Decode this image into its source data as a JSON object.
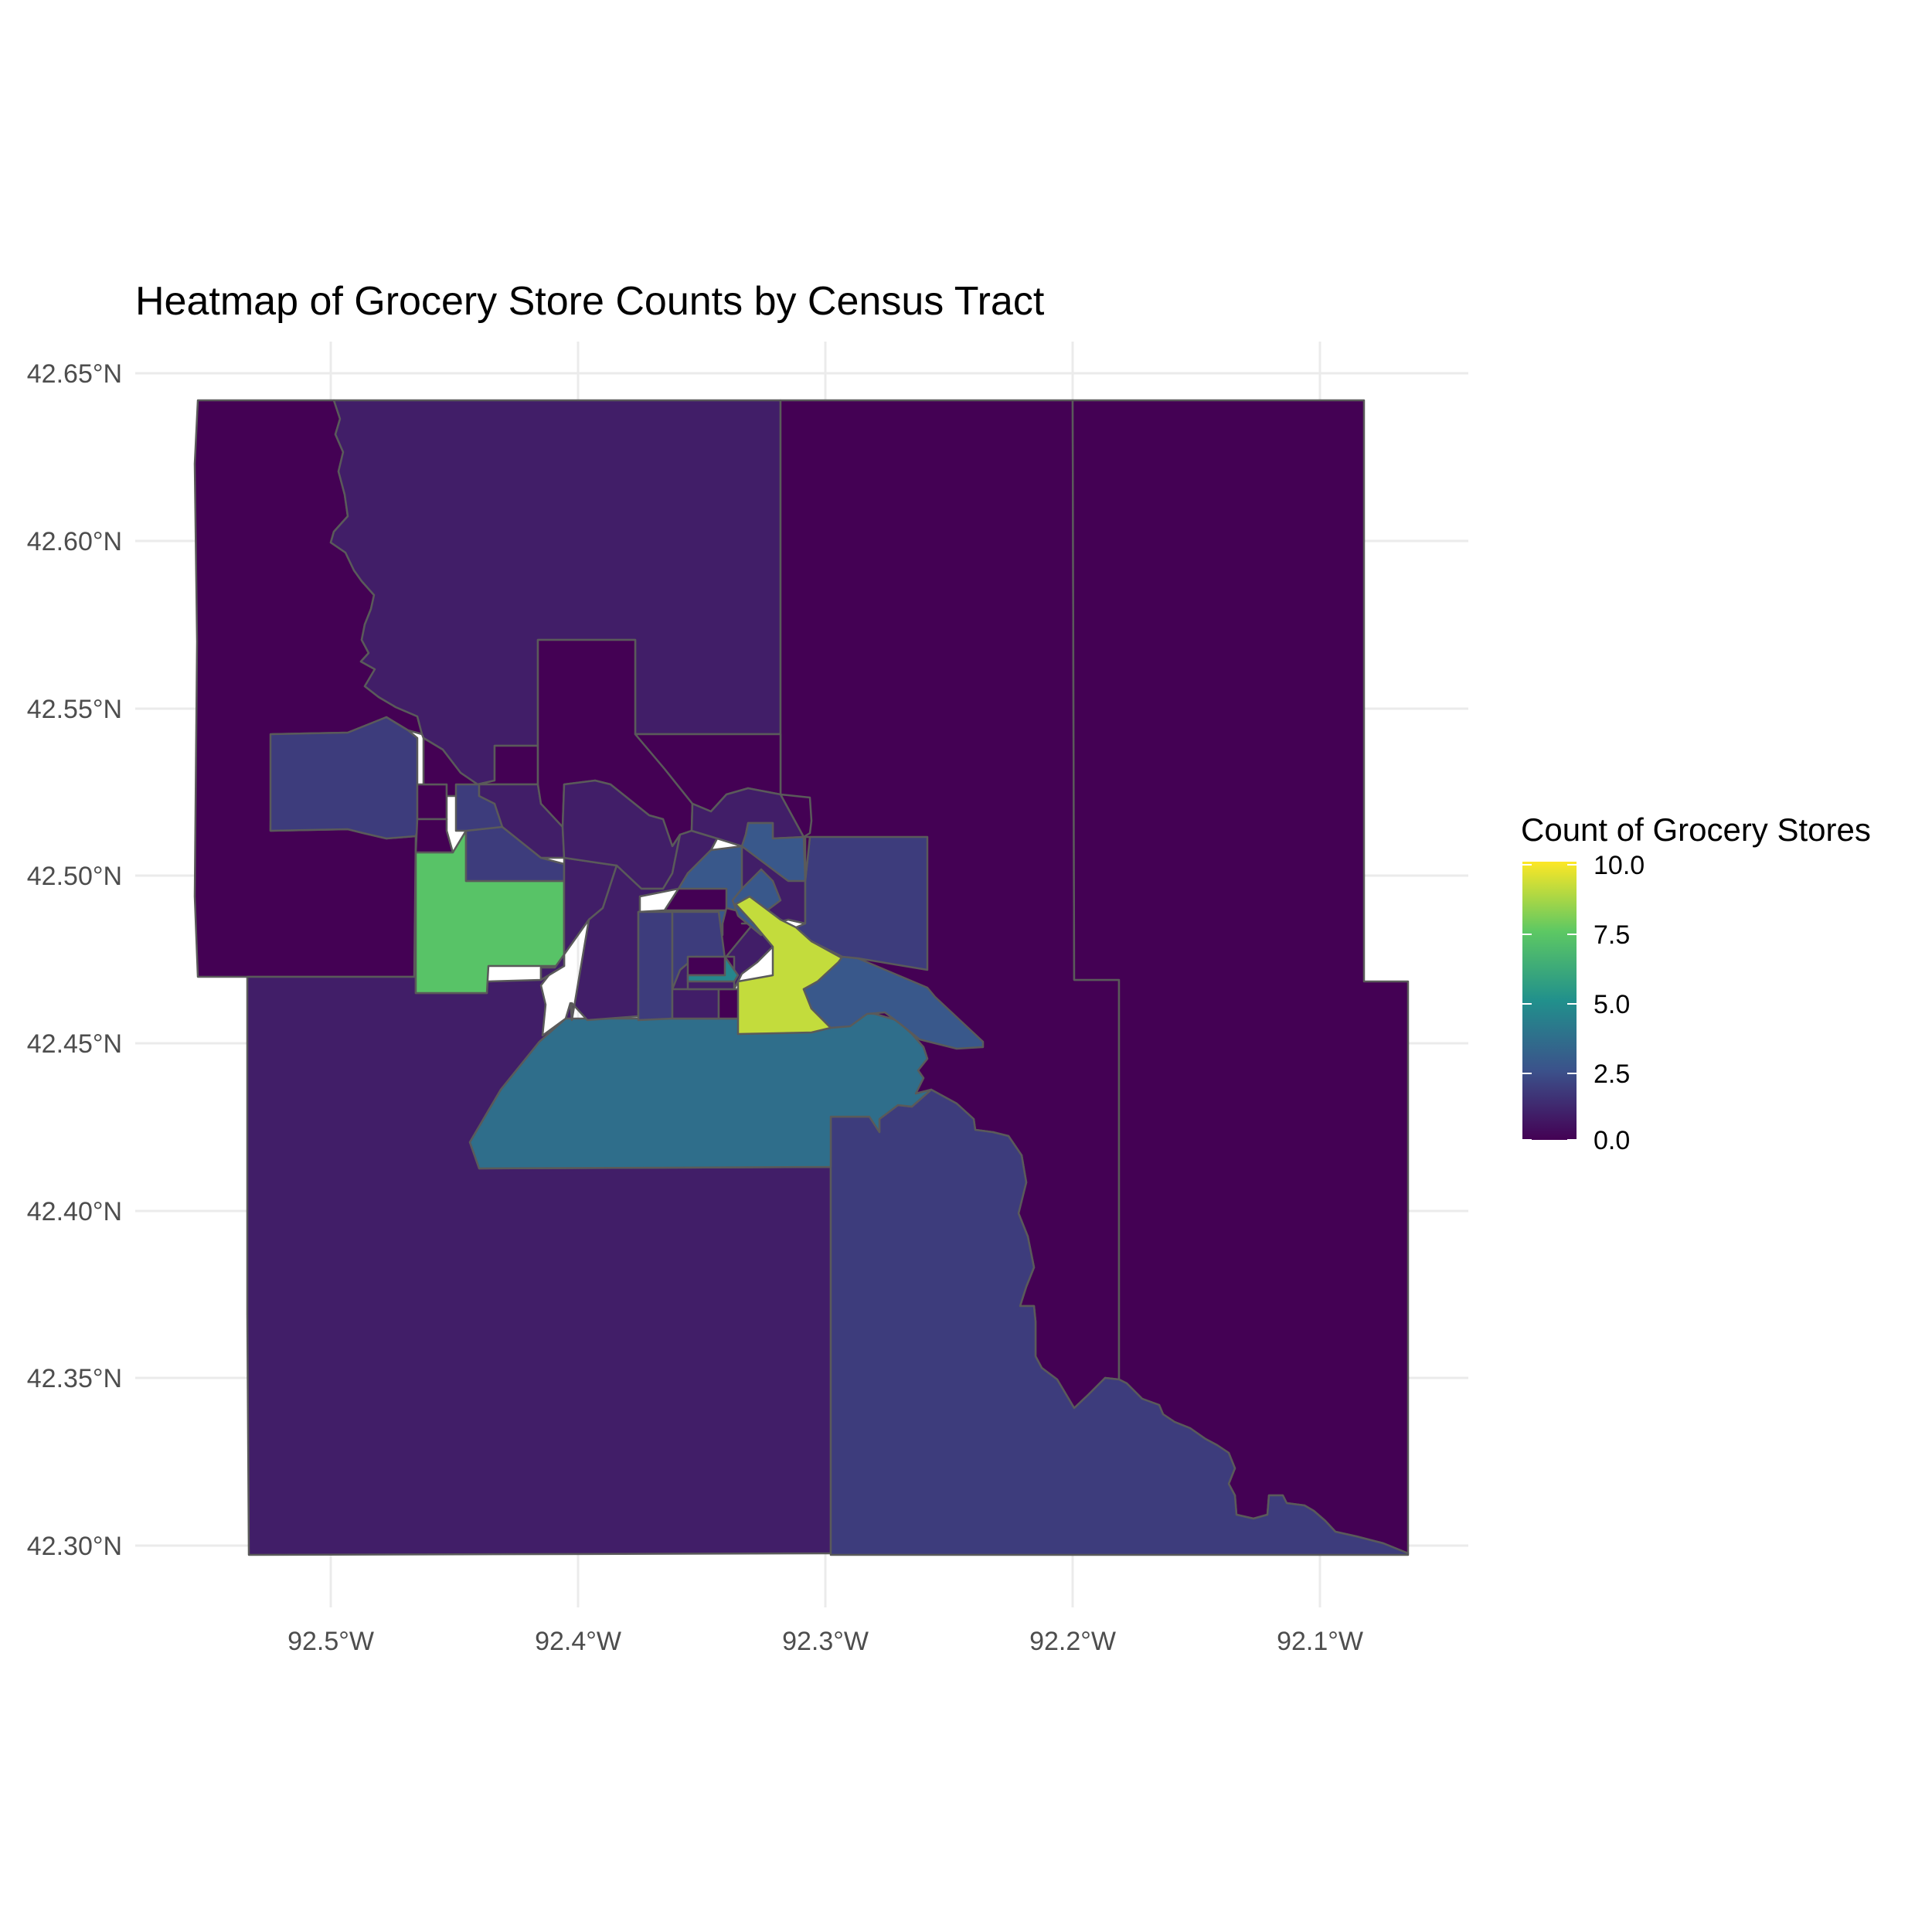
{
  "chart_data": {
    "type": "heatmap",
    "title": "Heatmap of Grocery Store Counts by Census Tract",
    "xlabel": "",
    "ylabel": "",
    "x_ticks": [
      "92.5°W",
      "92.4°W",
      "92.3°W",
      "92.2°W",
      "92.1°W"
    ],
    "y_ticks": [
      "42.65°N",
      "42.60°N",
      "42.55°N",
      "42.50°N",
      "42.45°N",
      "42.40°N",
      "42.35°N",
      "42.30°N"
    ],
    "grid": true,
    "legend": {
      "title": "Count of Grocery Stores",
      "placement": "right",
      "labels": [
        "10.0",
        "7.5",
        "5.0",
        "2.5",
        "0.0"
      ],
      "range": [
        0,
        10
      ],
      "palette": "viridis"
    },
    "tracts": [
      {
        "id": "t01",
        "value": 0
      },
      {
        "id": "t02",
        "value": 1
      },
      {
        "id": "t03",
        "value": 0
      },
      {
        "id": "t04",
        "value": 0
      },
      {
        "id": "t05",
        "value": 1
      },
      {
        "id": "t06",
        "value": 2
      },
      {
        "id": "t07",
        "value": 4
      },
      {
        "id": "t08",
        "value": 2
      },
      {
        "id": "t09",
        "value": 0
      },
      {
        "id": "t10",
        "value": 8
      },
      {
        "id": "t11",
        "value": 2
      },
      {
        "id": "t12",
        "value": 0
      },
      {
        "id": "t13",
        "value": 0
      },
      {
        "id": "t14",
        "value": 2
      },
      {
        "id": "t15",
        "value": 1
      },
      {
        "id": "t16",
        "value": 1
      },
      {
        "id": "t17",
        "value": 0
      },
      {
        "id": "t18",
        "value": 1
      },
      {
        "id": "t19",
        "value": 1
      },
      {
        "id": "t20",
        "value": 0
      },
      {
        "id": "t21",
        "value": 1
      },
      {
        "id": "t22",
        "value": 3
      },
      {
        "id": "t23",
        "value": 0
      },
      {
        "id": "t24",
        "value": 0
      },
      {
        "id": "t25",
        "value": 1
      },
      {
        "id": "t26",
        "value": 1
      },
      {
        "id": "t27",
        "value": 2
      },
      {
        "id": "t28",
        "value": 2
      },
      {
        "id": "t29",
        "value": 1
      },
      {
        "id": "t30",
        "value": 0
      },
      {
        "id": "t31",
        "value": 0
      },
      {
        "id": "t32",
        "value": 1
      },
      {
        "id": "t33",
        "value": 3
      },
      {
        "id": "t34",
        "value": 10
      },
      {
        "id": "t35",
        "value": 3
      },
      {
        "id": "t36",
        "value": 0
      },
      {
        "id": "t37",
        "value": 5
      },
      {
        "id": "t38",
        "value": 2
      },
      {
        "id": "t39",
        "value": 0
      }
    ]
  }
}
